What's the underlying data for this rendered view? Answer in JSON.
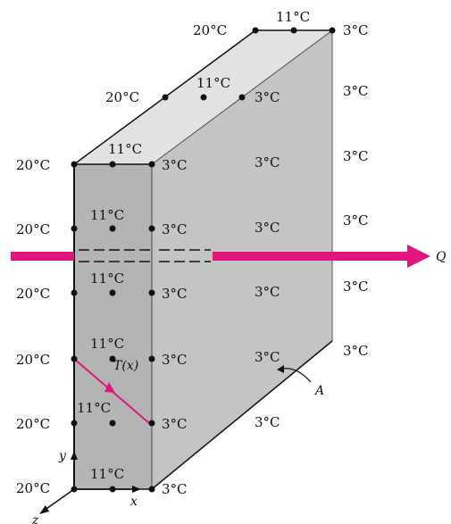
{
  "labels": {
    "t20": "20°C",
    "t11": "11°C",
    "t3": "3°C",
    "tx": "T(x)",
    "q": "Q",
    "area": "A",
    "x": "x",
    "y": "y",
    "z": "z"
  },
  "colors": {
    "front_face": "#b4b4b4",
    "side_face": "#c4c4c4",
    "top_face": "#e2e2e2",
    "heat_arrow": "#e0157f",
    "edge": "#111111"
  }
}
